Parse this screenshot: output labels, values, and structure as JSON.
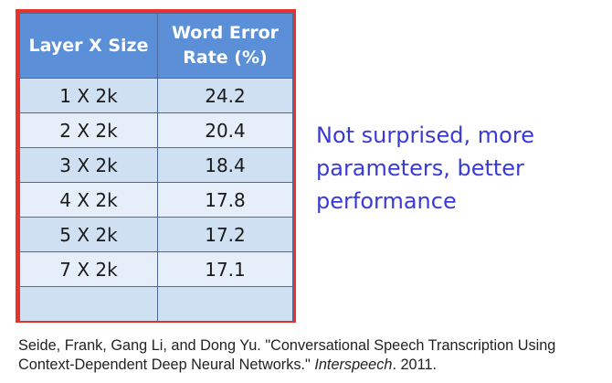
{
  "table": {
    "headers": [
      "Layer X Size",
      "Word Error Rate (%)"
    ],
    "rows": [
      {
        "layer": "1 X 2k",
        "wer": "24.2"
      },
      {
        "layer": "2 X 2k",
        "wer": "20.4"
      },
      {
        "layer": "3 X 2k",
        "wer": "18.4"
      },
      {
        "layer": "4 X 2k",
        "wer": "17.8"
      },
      {
        "layer": "5 X 2k",
        "wer": "17.2"
      },
      {
        "layer": "7 X 2k",
        "wer": "17.1"
      },
      {
        "layer": "",
        "wer": ""
      }
    ]
  },
  "commentary": "Not surprised, more parameters, better performance",
  "citation": {
    "part1": "Seide, Frank, Gang Li, and Dong Yu. \"Conversational Speech Transcription Using Context-Dependent Deep Neural Networks.\" ",
    "venue": "Interspeech",
    "part2": ". 2011."
  },
  "colors": {
    "frame": "#e8332d",
    "header": "#5b8fd8",
    "row_odd": "#cfe0f3",
    "row_even": "#e6eff9",
    "commentary": "#3a3ad8"
  }
}
